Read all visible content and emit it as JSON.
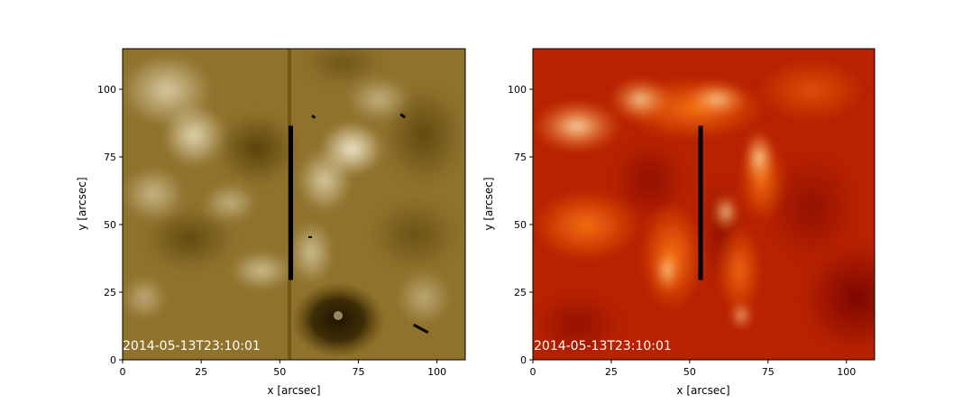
{
  "chart_data": [
    {
      "type": "heatmap",
      "panel": "left",
      "colormap": "gold",
      "timestamp": "2014-05-13T23:10:01",
      "xlabel": "x [arcsec]",
      "ylabel": "y [arcsec]",
      "xlim": [
        0,
        109
      ],
      "ylim": [
        0,
        115
      ],
      "xticks": [
        0,
        25,
        50,
        75,
        100
      ],
      "yticks": [
        0,
        25,
        50,
        75,
        100
      ],
      "slit": {
        "x": 53.5,
        "y_start": 29.5,
        "y_end": 86.5
      }
    },
    {
      "type": "heatmap",
      "panel": "right",
      "colormap": "red-orange",
      "timestamp": "2014-05-13T23:10:01",
      "xlabel": "x [arcsec]",
      "ylabel": "y [arcsec]",
      "xlim": [
        0,
        109
      ],
      "ylim": [
        0,
        115
      ],
      "xticks": [
        0,
        25,
        50,
        75,
        100
      ],
      "yticks": [
        0,
        25,
        50,
        75,
        100
      ],
      "slit": {
        "x": 53.5,
        "y_start": 29.5,
        "y_end": 86.5
      }
    }
  ],
  "colors": {
    "gold_dark": "#5a4208",
    "gold_mid": "#93752c",
    "gold_light": "#f4ecd0",
    "red_dark": "#7d0a00",
    "red_mid": "#c42800",
    "orange": "#ff7a10",
    "yellow_light": "#fff2cf",
    "slit": "#000000",
    "timestamp_text": "#ffffff"
  }
}
